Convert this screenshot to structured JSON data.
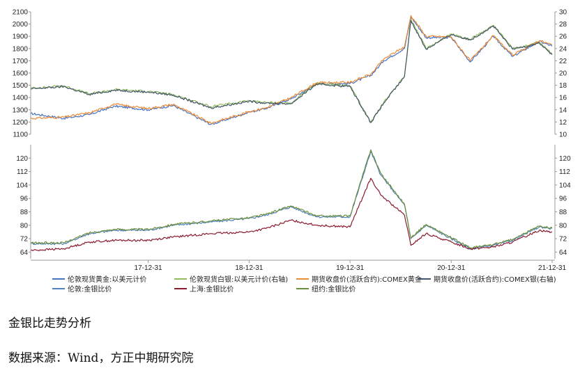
{
  "caption": "金银比走势分析",
  "source": "数据来源：Wind，方正中期研究院",
  "chart_data": [
    {
      "type": "line",
      "panel": "top",
      "x_ticks": [
        "17-12-31",
        "18-12-31",
        "19-12-31",
        "20-12-31",
        "21-12-31"
      ],
      "x_range": [
        "2016-11-01",
        "2022-01-10"
      ],
      "y_left": {
        "ylim": [
          1100,
          2100
        ],
        "ticks": [
          "1100",
          "1200",
          "1300",
          "1400",
          "1500",
          "1600",
          "1700",
          "1800",
          "1900",
          "2000",
          "2100"
        ]
      },
      "y_right": {
        "ylim": [
          10,
          30
        ],
        "ticks": [
          "10",
          "12",
          "14",
          "16",
          "18",
          "20",
          "22",
          "24",
          "26",
          "28",
          "30"
        ]
      },
      "series": [
        {
          "name": "伦敦现货黄金:以美元计价",
          "color": "#4472c4",
          "axis": "left",
          "points": [
            [
              "2016-11-01",
              1270
            ],
            [
              "2017-03-01",
              1230
            ],
            [
              "2017-06-01",
              1260
            ],
            [
              "2017-09-01",
              1330
            ],
            [
              "2017-12-31",
              1300
            ],
            [
              "2018-04-01",
              1335
            ],
            [
              "2018-08-15",
              1180
            ],
            [
              "2018-12-31",
              1280
            ],
            [
              "2019-03-01",
              1310
            ],
            [
              "2019-06-01",
              1390
            ],
            [
              "2019-09-01",
              1510
            ],
            [
              "2019-12-31",
              1515
            ],
            [
              "2020-03-15",
              1580
            ],
            [
              "2020-05-01",
              1700
            ],
            [
              "2020-07-15",
              1800
            ],
            [
              "2020-08-07",
              2060
            ],
            [
              "2020-10-01",
              1890
            ],
            [
              "2020-12-31",
              1890
            ],
            [
              "2021-03-10",
              1690
            ],
            [
              "2021-06-01",
              1900
            ],
            [
              "2021-08-10",
              1735
            ],
            [
              "2021-11-15",
              1860
            ],
            [
              "2021-12-31",
              1820
            ]
          ]
        },
        {
          "name": "伦敦现货白银:以美元计价(右轴)",
          "color": "#8fbc5a",
          "axis": "right",
          "points": [
            [
              "2016-11-01",
              17.5
            ],
            [
              "2017-03-01",
              17.9
            ],
            [
              "2017-06-01",
              16.6
            ],
            [
              "2017-09-01",
              17.3
            ],
            [
              "2017-12-31",
              17.0
            ],
            [
              "2018-04-01",
              16.5
            ],
            [
              "2018-08-15",
              14.5
            ],
            [
              "2018-12-31",
              15.5
            ],
            [
              "2019-03-01",
              15.2
            ],
            [
              "2019-06-01",
              15.1
            ],
            [
              "2019-09-01",
              18.3
            ],
            [
              "2019-12-31",
              17.9
            ],
            [
              "2020-03-15",
              12.0
            ],
            [
              "2020-05-01",
              15.2
            ],
            [
              "2020-07-15",
              19.5
            ],
            [
              "2020-08-07",
              28.8
            ],
            [
              "2020-10-01",
              24.0
            ],
            [
              "2020-12-31",
              26.4
            ],
            [
              "2021-03-10",
              25.5
            ],
            [
              "2021-06-01",
              27.8
            ],
            [
              "2021-08-10",
              24.0
            ],
            [
              "2021-11-15",
              25.0
            ],
            [
              "2021-12-31",
              23.1
            ]
          ]
        },
        {
          "name": "期货收盘价(活跃合约):COMEX黄金",
          "color": "#ed8a35",
          "axis": "left",
          "points": [
            [
              "2016-11-01",
              1230
            ],
            [
              "2017-03-01",
              1240
            ],
            [
              "2017-06-01",
              1275
            ],
            [
              "2017-09-01",
              1345
            ],
            [
              "2017-12-31",
              1310
            ],
            [
              "2018-04-01",
              1345
            ],
            [
              "2018-08-15",
              1190
            ],
            [
              "2018-12-31",
              1285
            ],
            [
              "2019-03-01",
              1315
            ],
            [
              "2019-06-01",
              1400
            ],
            [
              "2019-09-01",
              1520
            ],
            [
              "2019-12-31",
              1525
            ],
            [
              "2020-03-15",
              1590
            ],
            [
              "2020-05-01",
              1715
            ],
            [
              "2020-07-15",
              1815
            ],
            [
              "2020-08-07",
              2070
            ],
            [
              "2020-10-01",
              1900
            ],
            [
              "2020-12-31",
              1895
            ],
            [
              "2021-03-10",
              1700
            ],
            [
              "2021-06-01",
              1905
            ],
            [
              "2021-08-10",
              1745
            ],
            [
              "2021-11-15",
              1865
            ],
            [
              "2021-12-31",
              1830
            ]
          ]
        },
        {
          "name": "期货收盘价(活跃合约):COMEX银(右轴)",
          "color": "#44546a",
          "axis": "right",
          "points": [
            [
              "2016-11-01",
              17.4
            ],
            [
              "2017-03-01",
              17.8
            ],
            [
              "2017-06-01",
              16.5
            ],
            [
              "2017-09-01",
              17.2
            ],
            [
              "2017-12-31",
              16.9
            ],
            [
              "2018-04-01",
              16.4
            ],
            [
              "2018-08-15",
              14.3
            ],
            [
              "2018-12-31",
              15.4
            ],
            [
              "2019-03-01",
              15.1
            ],
            [
              "2019-06-01",
              15.0
            ],
            [
              "2019-09-01",
              18.2
            ],
            [
              "2019-12-31",
              17.8
            ],
            [
              "2020-03-15",
              11.9
            ],
            [
              "2020-05-01",
              15.1
            ],
            [
              "2020-07-15",
              19.4
            ],
            [
              "2020-08-07",
              28.6
            ],
            [
              "2020-10-01",
              23.9
            ],
            [
              "2020-12-31",
              26.3
            ],
            [
              "2021-03-10",
              25.4
            ],
            [
              "2021-06-01",
              27.7
            ],
            [
              "2021-08-10",
              23.9
            ],
            [
              "2021-11-15",
              24.9
            ],
            [
              "2021-12-31",
              23.0
            ]
          ]
        }
      ]
    },
    {
      "type": "line",
      "panel": "bottom",
      "x_ticks": [
        "17-12-31",
        "18-12-31",
        "19-12-31",
        "20-12-31",
        "21-12-31"
      ],
      "x_range": [
        "2016-11-01",
        "2022-01-10"
      ],
      "y_left": {
        "ylim": [
          60,
          128
        ],
        "ticks": [
          "64",
          "72",
          "80",
          "88",
          "96",
          "104",
          "112",
          "120"
        ]
      },
      "y_right": {
        "ylim": [
          60,
          128
        ],
        "ticks": [
          "64",
          "72",
          "80",
          "88",
          "96",
          "104",
          "112",
          "120"
        ]
      },
      "series": [
        {
          "name": "伦敦:金银比价",
          "color": "#4f81bd",
          "axis": "left",
          "points": [
            [
              "2016-11-01",
              69
            ],
            [
              "2017-03-01",
              69
            ],
            [
              "2017-06-01",
              75
            ],
            [
              "2017-09-01",
              77
            ],
            [
              "2017-12-31",
              77
            ],
            [
              "2018-04-01",
              80
            ],
            [
              "2018-08-15",
              82
            ],
            [
              "2018-12-31",
              84
            ],
            [
              "2019-03-01",
              86
            ],
            [
              "2019-06-01",
              91
            ],
            [
              "2019-09-01",
              85
            ],
            [
              "2019-12-31",
              85
            ],
            [
              "2020-03-15",
              124
            ],
            [
              "2020-04-20",
              110
            ],
            [
              "2020-07-15",
              92
            ],
            [
              "2020-08-07",
              72
            ],
            [
              "2020-10-01",
              80
            ],
            [
              "2020-12-31",
              72
            ],
            [
              "2021-03-10",
              66
            ],
            [
              "2021-06-01",
              68
            ],
            [
              "2021-08-10",
              71
            ],
            [
              "2021-11-15",
              79
            ],
            [
              "2021-12-31",
              78
            ]
          ]
        },
        {
          "name": "上海:金银比价",
          "color": "#8b1a2e",
          "axis": "left",
          "points": [
            [
              "2016-11-01",
              65
            ],
            [
              "2017-03-01",
              66
            ],
            [
              "2017-06-01",
              70
            ],
            [
              "2017-09-01",
              71
            ],
            [
              "2017-12-31",
              71
            ],
            [
              "2018-04-01",
              73
            ],
            [
              "2018-08-15",
              75
            ],
            [
              "2018-12-31",
              76
            ],
            [
              "2019-03-01",
              78
            ],
            [
              "2019-06-01",
              83
            ],
            [
              "2019-09-01",
              80
            ],
            [
              "2019-12-31",
              79
            ],
            [
              "2020-03-15",
              108
            ],
            [
              "2020-04-20",
              98
            ],
            [
              "2020-07-15",
              86
            ],
            [
              "2020-08-07",
              68
            ],
            [
              "2020-10-01",
              75
            ],
            [
              "2020-12-31",
              70
            ],
            [
              "2021-03-10",
              66
            ],
            [
              "2021-06-01",
              67
            ],
            [
              "2021-08-10",
              70
            ],
            [
              "2021-11-15",
              77
            ],
            [
              "2021-12-31",
              76
            ]
          ]
        },
        {
          "name": "纽约:金银比价",
          "color": "#6b8e3a",
          "axis": "left",
          "points": [
            [
              "2016-11-01",
              69.5
            ],
            [
              "2017-03-01",
              69.5
            ],
            [
              "2017-06-01",
              75.5
            ],
            [
              "2017-09-01",
              77.5
            ],
            [
              "2017-12-31",
              77.5
            ],
            [
              "2018-04-01",
              80.5
            ],
            [
              "2018-08-15",
              82.5
            ],
            [
              "2018-12-31",
              84.5
            ],
            [
              "2019-03-01",
              86.5
            ],
            [
              "2019-06-01",
              91.5
            ],
            [
              "2019-09-01",
              85.5
            ],
            [
              "2019-12-31",
              85.5
            ],
            [
              "2020-03-15",
              125
            ],
            [
              "2020-04-20",
              111
            ],
            [
              "2020-07-15",
              92.5
            ],
            [
              "2020-08-07",
              72.5
            ],
            [
              "2020-10-01",
              80.5
            ],
            [
              "2020-12-31",
              72.5
            ],
            [
              "2021-03-10",
              66.5
            ],
            [
              "2021-06-01",
              68.5
            ],
            [
              "2021-08-10",
              71.5
            ],
            [
              "2021-11-15",
              79.5
            ],
            [
              "2021-12-31",
              78.5
            ]
          ]
        }
      ]
    }
  ]
}
